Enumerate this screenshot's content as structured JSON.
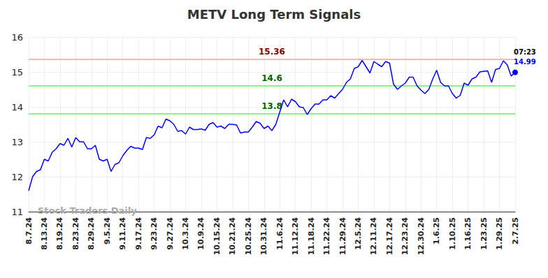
{
  "chart_data": {
    "type": "line",
    "title": "METV Long Term Signals",
    "categories": [
      "8.7.24",
      null,
      null,
      null,
      "8.13.24",
      null,
      null,
      null,
      "8.19.24",
      null,
      null,
      null,
      "8.23.24",
      null,
      null,
      null,
      "8.29.24",
      null,
      null,
      null,
      "9.5.24",
      null,
      null,
      null,
      "9.11.24",
      null,
      null,
      null,
      "9.17.24",
      null,
      null,
      null,
      "9.23.24",
      null,
      null,
      null,
      "9.27.24",
      null,
      null,
      null,
      "10.3.24",
      null,
      null,
      null,
      "10.9.24",
      null,
      null,
      null,
      "10.15.24",
      null,
      null,
      null,
      "10.21.24",
      null,
      null,
      null,
      "10.25.24",
      null,
      null,
      null,
      "10.31.24",
      null,
      null,
      null,
      "11.6.24",
      null,
      null,
      null,
      "11.12.24",
      null,
      null,
      null,
      "11.18.24",
      null,
      null,
      null,
      "11.22.24",
      null,
      null,
      null,
      "11.29.24",
      null,
      null,
      null,
      "12.5.24",
      null,
      null,
      null,
      "12.11.24",
      null,
      null,
      null,
      "12.17.24",
      null,
      null,
      null,
      "12.23.24",
      null,
      null,
      null,
      "12.30.24",
      null,
      null,
      null,
      "1.6.25",
      null,
      null,
      null,
      "1.10.25",
      null,
      null,
      null,
      "1.16.25",
      null,
      null,
      null,
      "1.23.25",
      null,
      null,
      null,
      "1.29.25",
      null,
      null,
      null,
      "2.7.25"
    ],
    "values": [
      11.6,
      12.0,
      12.15,
      12.2,
      12.5,
      12.45,
      12.7,
      12.8,
      12.95,
      12.9,
      13.1,
      12.85,
      13.12,
      13.0,
      13.0,
      12.8,
      12.8,
      12.9,
      12.5,
      12.45,
      12.5,
      12.15,
      12.35,
      12.4,
      12.6,
      12.75,
      12.87,
      12.82,
      12.82,
      12.78,
      13.12,
      13.1,
      13.2,
      13.45,
      13.4,
      13.65,
      13.6,
      13.5,
      13.3,
      13.32,
      13.22,
      13.42,
      13.35,
      13.35,
      13.37,
      13.33,
      13.5,
      13.55,
      13.42,
      13.45,
      13.38,
      13.5,
      13.5,
      13.48,
      13.25,
      13.28,
      13.28,
      13.42,
      13.58,
      13.53,
      13.38,
      13.45,
      13.32,
      13.5,
      13.85,
      14.2,
      14.0,
      14.22,
      14.15,
      14.0,
      13.98,
      13.78,
      13.95,
      14.08,
      14.08,
      14.2,
      14.2,
      14.32,
      14.25,
      14.38,
      14.5,
      14.7,
      14.8,
      15.1,
      15.15,
      15.33,
      15.15,
      14.97,
      15.3,
      15.22,
      15.15,
      15.3,
      15.25,
      14.65,
      14.5,
      14.6,
      14.68,
      14.85,
      14.85,
      14.6,
      14.48,
      14.38,
      14.5,
      14.8,
      15.05,
      14.7,
      14.6,
      14.6,
      14.38,
      14.25,
      14.33,
      14.68,
      14.62,
      14.8,
      14.85,
      15.0,
      15.02,
      15.03,
      14.7,
      15.07,
      15.1,
      15.32,
      15.2,
      14.88,
      14.99
    ],
    "color": "#0000ff",
    "ylim": [
      11,
      16
    ],
    "yticks": [
      11,
      12,
      13,
      14,
      15,
      16
    ],
    "grid": true,
    "signal_lines": [
      {
        "value": 15.36,
        "color": "#ffb3b3",
        "label_color": "#8b0000"
      },
      {
        "value": 14.6,
        "color": "#90ee90",
        "label_color": "#006400"
      },
      {
        "value": 13.8,
        "color": "#90ee90",
        "label_color": "#006400"
      }
    ],
    "last_point_time": "07:23",
    "watermark": "Stock Traders Daily"
  }
}
